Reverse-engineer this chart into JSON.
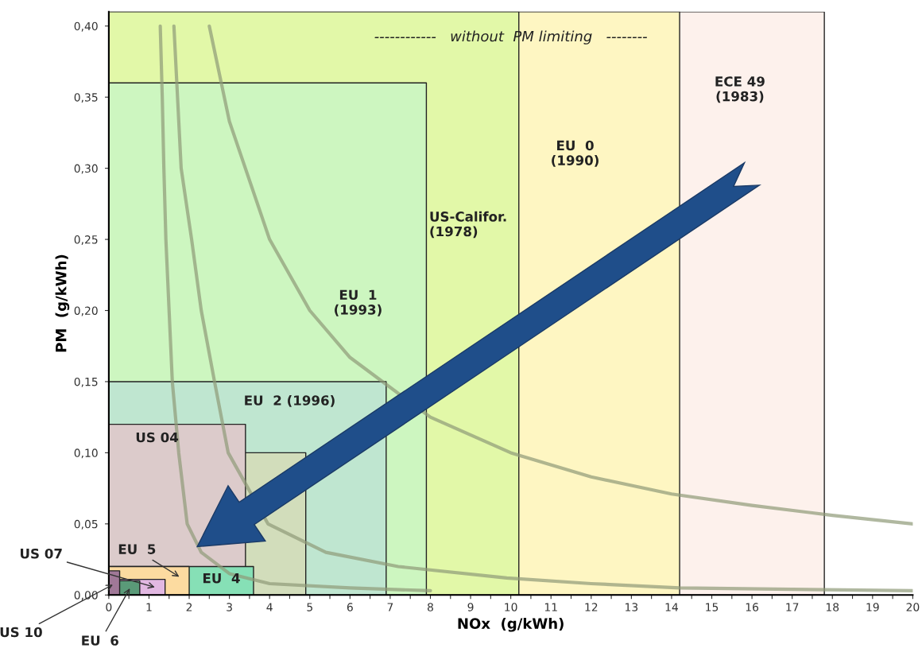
{
  "chart_data": {
    "type": "area",
    "xlabel": "NOx  (g/kWh)",
    "ylabel": "PM  (g/kWh)",
    "xlim": [
      0,
      20
    ],
    "ylim": [
      0,
      0.41
    ],
    "xticks": [
      0,
      {
        "value": 0.5,
        "label": null
      },
      1,
      {
        "value": 1.5,
        "label": null
      },
      2,
      {
        "value": 2.5,
        "label": null
      },
      3,
      {
        "value": 3.5,
        "label": null
      },
      4,
      {
        "value": 4.5,
        "label": null
      },
      5,
      {
        "value": 5.5,
        "label": null
      },
      6,
      {
        "value": 6.5,
        "label": null
      },
      7,
      {
        "value": 7.5,
        "label": null
      },
      8,
      {
        "value": 8.5,
        "label": null
      },
      9,
      {
        "value": 9.5,
        "label": null
      },
      10,
      {
        "value": 10.5,
        "label": null
      },
      11,
      {
        "value": 11.5,
        "label": null
      },
      12,
      {
        "value": 12.5,
        "label": null
      },
      13,
      {
        "value": 13.5,
        "label": null
      },
      14,
      {
        "value": 14.5,
        "label": null
      },
      15,
      {
        "value": 15.5,
        "label": null
      },
      16,
      {
        "value": 16.5,
        "label": null
      },
      17,
      {
        "value": 17.5,
        "label": null
      },
      18,
      {
        "value": 18.5,
        "label": null
      },
      19,
      {
        "value": 19.5,
        "label": null
      },
      20
    ],
    "yticks": [
      {
        "value": 0,
        "label": "0,00"
      },
      {
        "value": 0.05,
        "label": "0,05"
      },
      {
        "value": 0.1,
        "label": "0,10"
      },
      {
        "value": 0.15,
        "label": "0,15"
      },
      {
        "value": 0.2,
        "label": "0,20"
      },
      {
        "value": 0.25,
        "label": "0,25"
      },
      {
        "value": 0.3,
        "label": "0,30"
      },
      {
        "value": 0.35,
        "label": "0,35"
      },
      {
        "value": 0.4,
        "label": "0,40"
      }
    ],
    "grid": false,
    "legend": false,
    "series": [
      {
        "name": "EU  1\n(1993)",
        "color": "#cdf6c0",
        "x": [
          0,
          7.9
        ],
        "values": [
          0.36,
          0.36
        ]
      },
      {
        "name": "EU  2 (1996)",
        "color": "#bfe6d0",
        "x": [
          0,
          6.9
        ],
        "values": [
          0.15,
          0.15
        ]
      },
      {
        "color": "#d2ddbb",
        "x": [
          0,
          4.9
        ],
        "values": [
          0.1,
          0.1
        ]
      },
      {
        "name": "US 04",
        "color": "#dccbcb",
        "x": [
          0,
          3.4
        ],
        "values": [
          0.12,
          0.12
        ]
      },
      {
        "name": "EU  4",
        "color": "#86e0b6",
        "x": [
          0,
          3.6
        ],
        "values": [
          0.02,
          0.02
        ]
      },
      {
        "name": "EU  5",
        "color": "#fcdba0",
        "x": [
          0,
          2.0
        ],
        "values": [
          0.02,
          0.02
        ]
      },
      {
        "name": "US 07",
        "color": "#e2b8e2",
        "x": [
          0,
          1.4
        ],
        "values": [
          0.011,
          0.011
        ]
      },
      {
        "name": "EU  6",
        "color": "#5a9a78",
        "x": [
          0,
          0.77
        ],
        "values": [
          0.01,
          0.01
        ]
      },
      {
        "name": "US 10",
        "color": "#a07898",
        "x": [
          0,
          0.27
        ],
        "values": [
          0.017,
          0.017
        ]
      },
      {
        "type": "line",
        "color": "#8f9a78",
        "x": [
          1.28,
          1.33,
          1.37,
          1.42,
          1.5,
          1.58,
          1.74,
          1.95,
          2.3,
          3.0,
          4.0,
          6.0,
          8.0
        ],
        "values": [
          0.4,
          0.35,
          0.3,
          0.25,
          0.2,
          0.15,
          0.1,
          0.05,
          0.03,
          0.015,
          0.008,
          0.005,
          0.003
        ]
      },
      {
        "type": "line",
        "color": "#8f9a78",
        "x": [
          1.62,
          1.8,
          2.06,
          2.3,
          2.63,
          2.97,
          3.96,
          5.4,
          7.2,
          9.9,
          12,
          14.2,
          17,
          20
        ],
        "values": [
          0.4,
          0.3,
          0.25,
          0.2,
          0.15,
          0.1,
          0.05,
          0.03,
          0.02,
          0.012,
          0.008,
          0.005,
          0.004,
          0.003
        ]
      },
      {
        "type": "line",
        "color": "#8f9a78",
        "x": [
          2.5,
          3,
          4,
          5,
          6,
          8,
          10,
          12,
          14,
          16,
          18,
          20
        ],
        "values": [
          0.4,
          0.333,
          0.25,
          0.2,
          0.167,
          0.125,
          0.1,
          0.083,
          0.071,
          0.063,
          0.056,
          0.05
        ]
      }
    ],
    "bands": [
      {
        "axis": "x",
        "from": 0,
        "to": 17.8,
        "label": "ECE 49\n(1983)",
        "color": "#fdf1ec"
      },
      {
        "axis": "x",
        "from": 0,
        "to": 14.2,
        "label": "EU  0\n(1990)",
        "color": "#fef6c2"
      },
      {
        "axis": "x",
        "from": 0,
        "to": 10.2,
        "label": "US-Califor.\n(1978)",
        "color": "#e2f8a8"
      }
    ],
    "annotations": [
      "------------   without  PM limiting   --------"
    ]
  }
}
